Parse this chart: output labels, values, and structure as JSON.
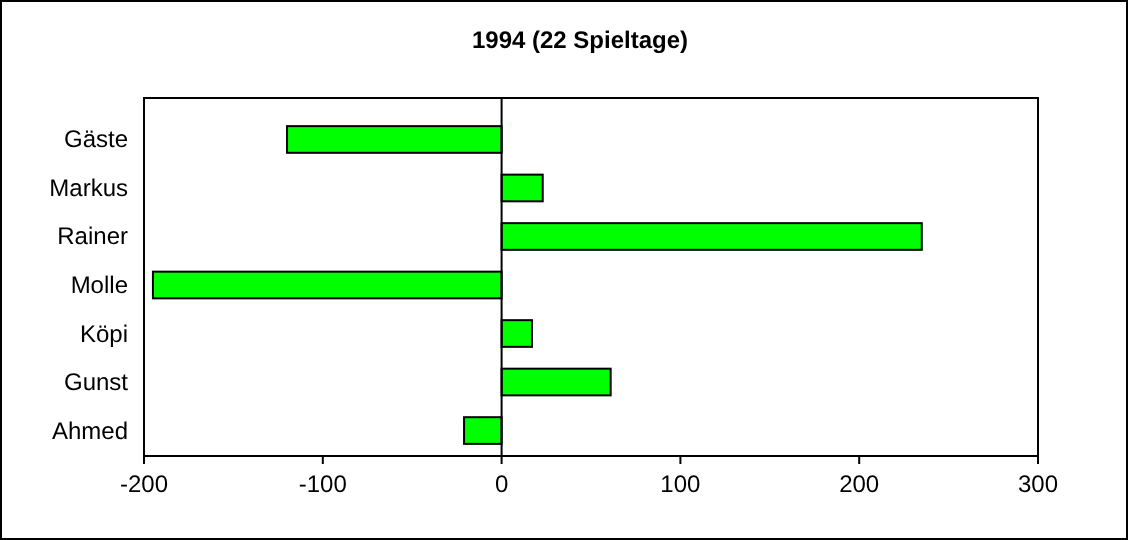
{
  "chart_data": {
    "type": "bar",
    "title": "1994 (22 Spieltage)",
    "orientation": "horizontal",
    "categories": [
      "Gäste",
      "Markus",
      "Rainer",
      "Molle",
      "Köpi",
      "Gunst",
      "Ahmed"
    ],
    "values": [
      -120,
      23,
      235,
      -195,
      17,
      61,
      -21
    ],
    "color": "#00ff00",
    "xlim": [
      -200,
      300
    ],
    "xticks": [
      -200,
      -100,
      0,
      100,
      200,
      300
    ]
  }
}
